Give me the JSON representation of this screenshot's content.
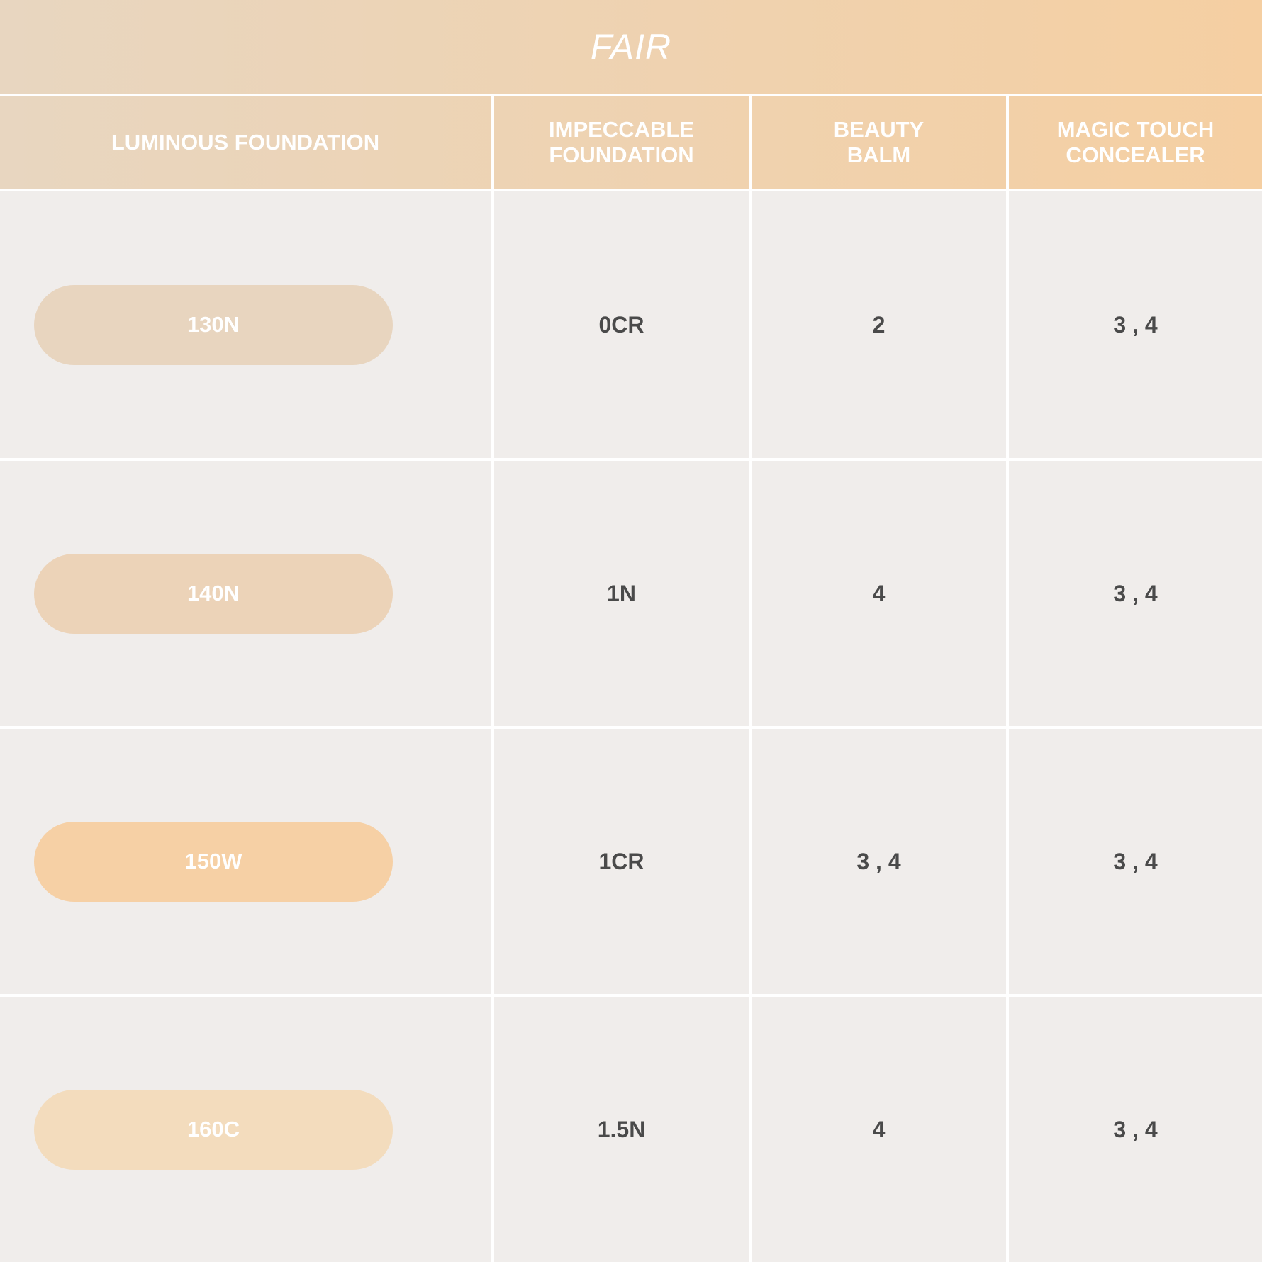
{
  "title": "FAIR",
  "columns": [
    "LUMINOUS FOUNDATION",
    "IMPECCABLE FOUNDATION",
    "BEAUTY BALM",
    "MAGIC TOUCH CONCEALER"
  ],
  "rows": [
    {
      "luminous": "130N",
      "swatch_color": "#e8d5bf",
      "impeccable": "0CR",
      "beauty_balm": "2",
      "concealer": "3 , 4"
    },
    {
      "luminous": "140N",
      "swatch_color": "#ecd3b8",
      "impeccable": "1N",
      "beauty_balm": "4",
      "concealer": "3 , 4"
    },
    {
      "luminous": "150W",
      "swatch_color": "#f6d0a5",
      "impeccable": "1CR",
      "beauty_balm": "3 , 4",
      "concealer": "3 , 4"
    },
    {
      "luminous": "160C",
      "swatch_color": "#f3dcbd",
      "impeccable": "1.5N",
      "beauty_balm": "4",
      "concealer": "3 , 4"
    }
  ]
}
